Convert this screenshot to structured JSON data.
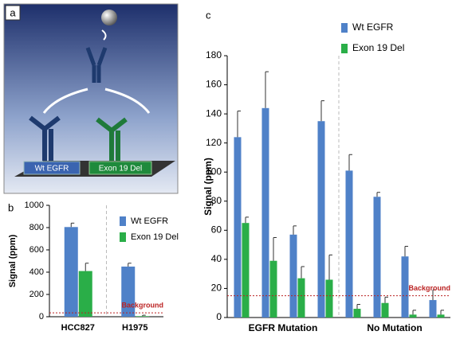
{
  "panels": {
    "a": {
      "label": "a",
      "platform_labels": [
        "Wt EGFR",
        "Exon 19 Del"
      ]
    },
    "b": {
      "label": "b"
    },
    "c": {
      "label": "c"
    }
  },
  "chart_data": [
    {
      "type": "bar",
      "ylabel": "Signal (ppm)",
      "categories": [
        "HCC827",
        "H1975"
      ],
      "series": [
        {
          "name": "Wt EGFR",
          "color": "#4f81c8",
          "values": [
            805,
            450
          ],
          "errors": [
            35,
            30
          ]
        },
        {
          "name": "Exon 19 Del",
          "color": "#2aae48",
          "values": [
            410,
            5
          ],
          "errors": [
            70,
            8
          ]
        }
      ],
      "ylim": [
        0,
        1000
      ],
      "yticks": [
        0,
        200,
        400,
        600,
        800,
        1000
      ],
      "annotations": [
        {
          "text": "Background",
          "value": 35
        }
      ]
    },
    {
      "type": "bar",
      "ylabel": "Signal (ppm)",
      "categories": [
        null,
        null,
        null,
        null,
        null,
        null,
        null,
        null
      ],
      "category_groups": [
        "EGFR Mutation",
        "No Mutation"
      ],
      "series": [
        {
          "name": "Wt EGFR",
          "color": "#4f81c8",
          "values": [
            124,
            144,
            57,
            135,
            101,
            83,
            42,
            12
          ],
          "errors": [
            18,
            25,
            6,
            14,
            11,
            3,
            7,
            7
          ]
        },
        {
          "name": "Exon 19 Del",
          "color": "#2aae48",
          "values": [
            65,
            39,
            27,
            26,
            6,
            10,
            2,
            2
          ],
          "errors": [
            4,
            16,
            8,
            17,
            3,
            4,
            3,
            3
          ]
        }
      ],
      "ylim": [
        0,
        180
      ],
      "yticks": [
        0,
        20,
        40,
        60,
        80,
        100,
        120,
        140,
        160,
        180
      ],
      "annotations": [
        {
          "text": "Background",
          "value": 15
        }
      ]
    }
  ]
}
